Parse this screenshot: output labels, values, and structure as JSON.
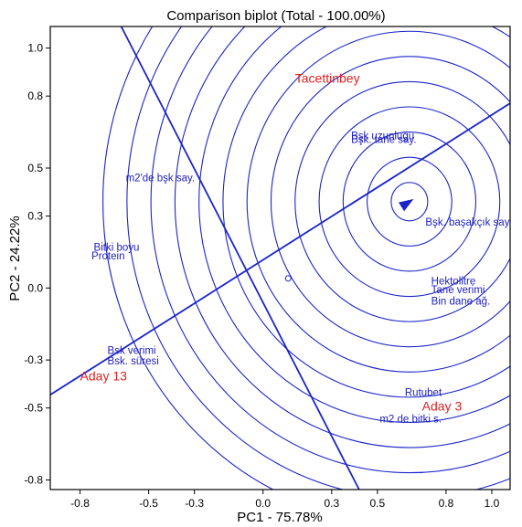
{
  "chart_data": {
    "type": "scatter",
    "title": "Comparison biplot (Total - 100.00%)",
    "xlabel": "PC1 - 75.78%",
    "ylabel": "PC2 - 24.22%",
    "xlim": [
      -0.93,
      1.08
    ],
    "ylim": [
      -0.84,
      1.09
    ],
    "xticks": [
      -0.8,
      -0.5,
      -0.3,
      0.0,
      0.3,
      0.5,
      0.8,
      1.0
    ],
    "yticks": [
      1.0,
      0.8,
      0.5,
      0.3,
      0.0,
      -0.3,
      -0.5,
      -0.8
    ],
    "xtick_labels": [
      "-0.8",
      "-0.5",
      "-0.3",
      "0.0",
      "0.3",
      "0.5",
      "0.8",
      "1.0"
    ],
    "ytick_labels": [
      "1.0",
      "0.8",
      "0.5",
      "0.3",
      "0.0",
      "-0.3",
      "-0.5",
      "-0.8"
    ],
    "grid": false,
    "origin": {
      "x": 0.11,
      "y": 0.04
    },
    "ideal_point": {
      "x": 0.64,
      "y": 0.36
    },
    "ring_radii": [
      0.08,
      0.185,
      0.29,
      0.395,
      0.5,
      0.605,
      0.71,
      0.815,
      0.92,
      1.025,
      1.13,
      1.235,
      1.34
    ],
    "ata_line": {
      "x1": -0.93,
      "y1": -0.445,
      "x2": 1.08,
      "y2": 0.77
    },
    "perpendicular_line": {
      "x1": -0.62,
      "y1": 1.09,
      "x2": 0.42,
      "y2": -0.84
    },
    "colors": {
      "line": "#1a24c8",
      "trait": "#2020c0",
      "genotype": "#e02020"
    },
    "traits": [
      {
        "label": "Bşk uzunluğu",
        "x": 0.385,
        "y": 0.62
      },
      {
        "label": "Bşk. tane say.",
        "x": 0.385,
        "y": 0.605
      },
      {
        "label": "m2'de bşk say.",
        "x": -0.6,
        "y": 0.445
      },
      {
        "label": "Bşk. başakçık say.",
        "x": 0.71,
        "y": 0.26
      },
      {
        "label": "Bitki boyu",
        "x": -0.74,
        "y": 0.155
      },
      {
        "label": "Protein",
        "x": -0.75,
        "y": 0.12
      },
      {
        "label": "Hektolitre",
        "x": 0.735,
        "y": 0.015
      },
      {
        "label": "Tane verimi",
        "x": 0.735,
        "y": -0.022
      },
      {
        "label": "Bin dane ağ.",
        "x": 0.735,
        "y": -0.07
      },
      {
        "label": "Bsk verimi",
        "x": -0.68,
        "y": -0.275
      },
      {
        "label": "Bsk. süresi",
        "x": -0.68,
        "y": -0.318
      },
      {
        "label": "Rutubet",
        "x": 0.62,
        "y": -0.45
      },
      {
        "label": "m2 de bitki s.",
        "x": 0.51,
        "y": -0.56
      }
    ],
    "genotypes": [
      {
        "label": "Tacettinbey",
        "x": 0.14,
        "y": 0.855
      },
      {
        "label": "Aday 13",
        "x": -0.8,
        "y": -0.385
      },
      {
        "label": "Aday 3",
        "x": 0.695,
        "y": -0.51
      }
    ]
  }
}
